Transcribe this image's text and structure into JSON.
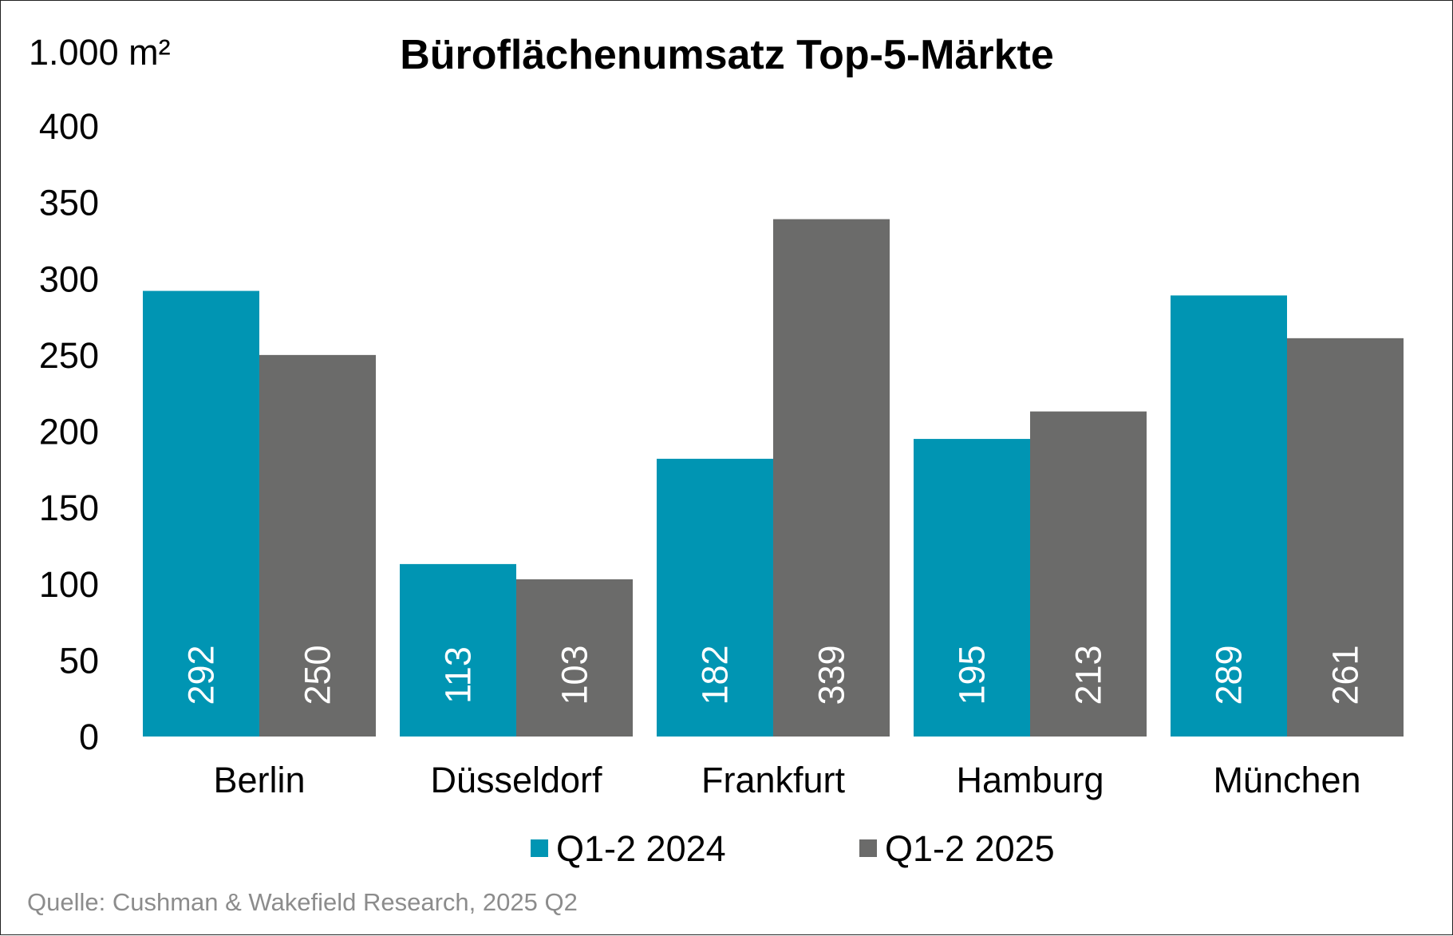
{
  "chart_data": {
    "type": "bar",
    "title": "Büroflächenumsatz Top-5-Märkte",
    "unit_label": "1.000 m²",
    "categories": [
      "Berlin",
      "Düsseldorf",
      "Frankfurt",
      "Hamburg",
      "München"
    ],
    "series": [
      {
        "name": "Q1-2 2024",
        "color": "#0095b3",
        "values": [
          292,
          113,
          182,
          195,
          289
        ]
      },
      {
        "name": "Q1-2 2025",
        "color": "#6b6b6a",
        "values": [
          250,
          103,
          339,
          213,
          261
        ]
      }
    ],
    "ylim": [
      0,
      400
    ],
    "yticks": [
      0,
      50,
      100,
      150,
      200,
      250,
      300,
      350,
      400
    ],
    "grid": false,
    "legend_position": "bottom",
    "data_labels": "inside-base-rotated",
    "source": "Quelle: Cushman & Wakefield Research, 2025 Q2"
  }
}
